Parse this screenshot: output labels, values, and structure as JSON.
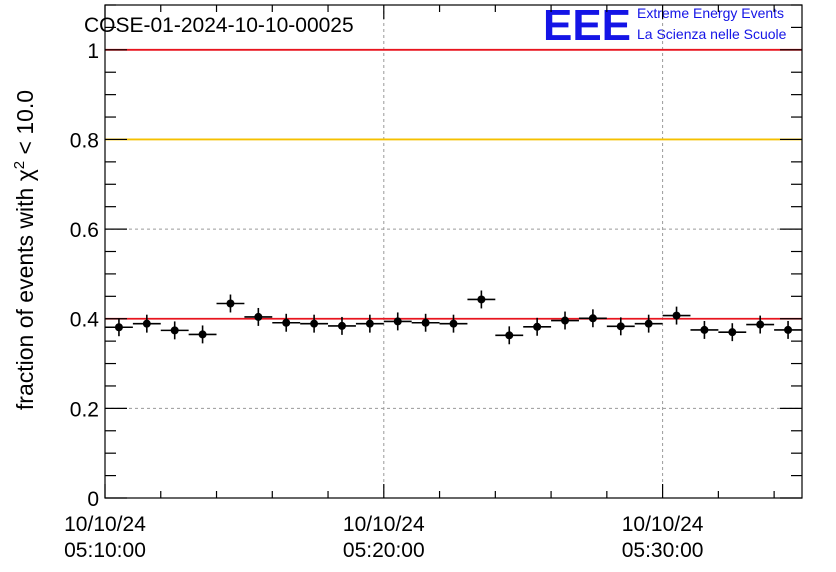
{
  "chart_data": {
    "type": "scatter",
    "title": "COSE-01-2024-10-10-00025",
    "ylabel_prefix": "fraction of events with χ",
    "ylabel_sup": "2",
    "ylabel_suffix": " < 10.0",
    "ylim": [
      0,
      1.1
    ],
    "yticks": [
      "0",
      "0.2",
      "0.4",
      "0.6",
      "0.8",
      "1"
    ],
    "ytick_values": [
      0,
      0.2,
      0.4,
      0.6,
      0.8,
      1.0
    ],
    "xlim_minutes": [
      0,
      25
    ],
    "xtick_labels": [
      {
        "date": "10/10/24",
        "time": "05:10:00",
        "minutes": 0
      },
      {
        "date": "10/10/24",
        "time": "05:20:00",
        "minutes": 10
      },
      {
        "date": "10/10/24",
        "time": "05:30:00",
        "minutes": 20
      }
    ],
    "grid": true,
    "reference_lines": [
      {
        "value": 1.0,
        "color": "#e8141e"
      },
      {
        "value": 0.8,
        "color": "#f5c000"
      },
      {
        "value": 0.4,
        "color": "#e8141e"
      }
    ],
    "bin_width_minutes": 1,
    "x": [
      0.5,
      1.5,
      2.5,
      3.5,
      4.5,
      5.5,
      6.5,
      7.5,
      8.5,
      9.5,
      10.5,
      11.5,
      12.5,
      13.5,
      14.5,
      15.5,
      16.5,
      17.5,
      18.5,
      19.5,
      20.5,
      21.5,
      22.5,
      23.5,
      24.5
    ],
    "y": [
      0.381,
      0.389,
      0.374,
      0.365,
      0.434,
      0.404,
      0.391,
      0.389,
      0.384,
      0.389,
      0.394,
      0.391,
      0.389,
      0.443,
      0.363,
      0.382,
      0.396,
      0.401,
      0.383,
      0.389,
      0.407,
      0.375,
      0.37,
      0.387,
      0.375
    ],
    "yerr": 0.02
  },
  "logo": {
    "letters": "EEE",
    "line1": "Extreme Energy Events",
    "line2": "La Scienza nelle Scuole",
    "color": "#1414e6"
  }
}
